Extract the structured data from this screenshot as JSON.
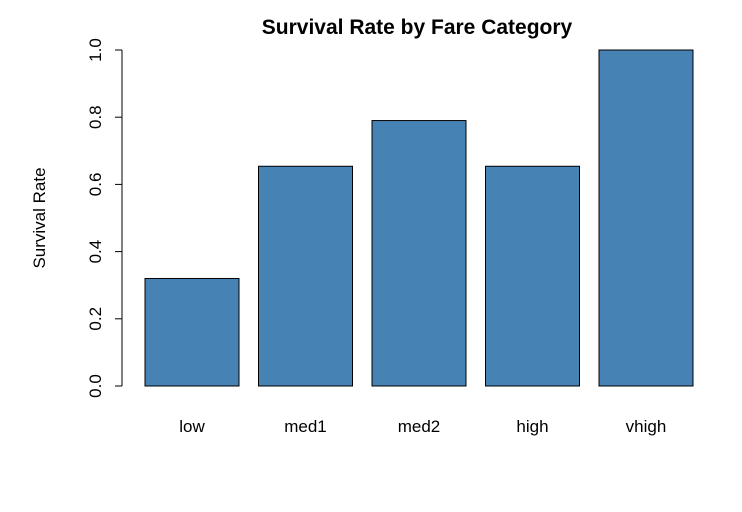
{
  "chart_data": {
    "type": "bar",
    "title": "Survival Rate by Fare Category",
    "xlabel": "",
    "ylabel": "Survival Rate",
    "categories": [
      "low",
      "med1",
      "med2",
      "high",
      "vhigh"
    ],
    "values": [
      0.32,
      0.654,
      0.79,
      0.654,
      1.0
    ],
    "ylim": [
      0,
      1
    ],
    "yticks": [
      "0.0",
      "0.2",
      "0.4",
      "0.6",
      "0.8",
      "1.0"
    ],
    "bar_color": "#4682B4",
    "grid": false,
    "legend": "none"
  }
}
